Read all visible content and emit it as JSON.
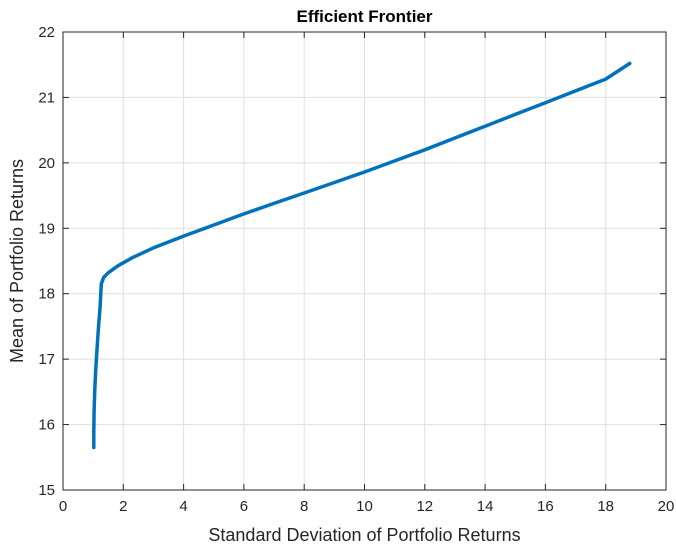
{
  "chart_data": {
    "type": "line",
    "title": "Efficient Frontier",
    "xlabel": "Standard Deviation of Portfolio Returns",
    "ylabel": "Mean of Portfolio Returns",
    "xlim": [
      0,
      20
    ],
    "ylim": [
      15,
      22
    ],
    "xticks": [
      0,
      2,
      4,
      6,
      8,
      10,
      12,
      14,
      16,
      18,
      20
    ],
    "yticks": [
      15,
      16,
      17,
      18,
      19,
      20,
      21,
      22
    ],
    "grid": true,
    "series_color": "#0072BD",
    "series": [
      {
        "x": [
          1.02,
          1.02,
          1.03,
          1.05,
          1.08,
          1.12,
          1.17,
          1.23,
          1.27,
          1.35,
          1.5,
          1.8,
          2.3,
          3.0,
          4.0,
          5.0,
          6.0,
          7.0,
          8.0,
          9.0,
          10.0,
          11.0,
          12.0,
          13.0,
          14.0,
          15.0,
          16.0,
          17.0,
          18.0,
          18.8
        ],
        "y": [
          15.65,
          15.9,
          16.2,
          16.5,
          16.8,
          17.1,
          17.45,
          17.8,
          18.15,
          18.25,
          18.32,
          18.42,
          18.55,
          18.7,
          18.88,
          19.05,
          19.22,
          19.38,
          19.54,
          19.7,
          19.86,
          20.03,
          20.2,
          20.38,
          20.56,
          20.74,
          20.92,
          21.1,
          21.28,
          21.52
        ]
      }
    ]
  }
}
